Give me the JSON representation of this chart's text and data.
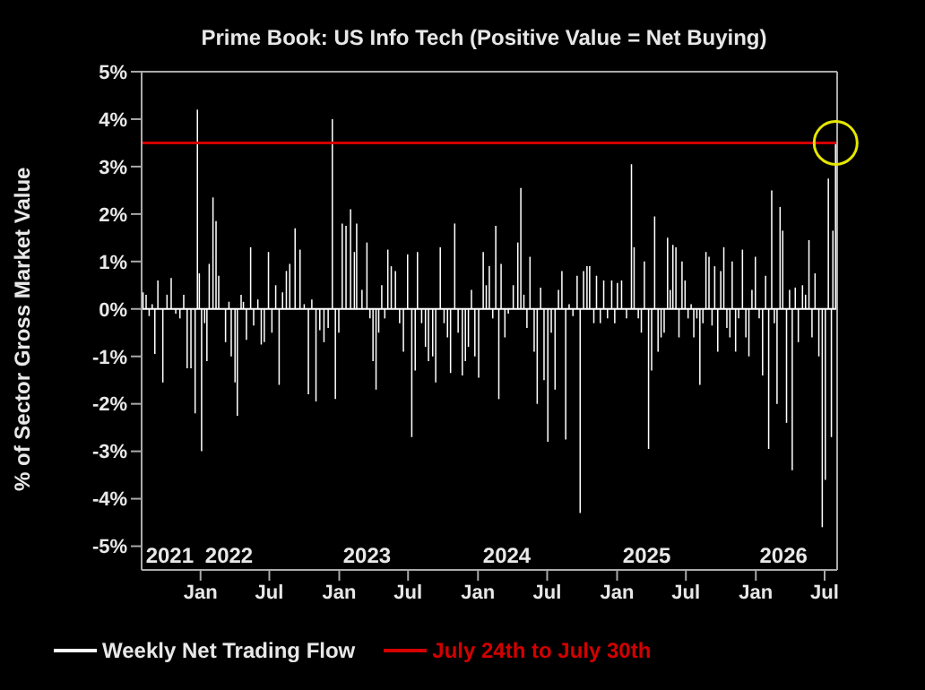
{
  "chart_data": {
    "type": "bar",
    "title": "Prime Book: US Info Tech (Positive Value = Net Buying)",
    "ylabel": "% of Sector Gross Market Value",
    "xlim": [
      "2021-07-30",
      "2026-08-03"
    ],
    "xticks": [
      {
        "value": "2022-01-01",
        "label": "Jan"
      },
      {
        "value": "2022-07-01",
        "label": "Jul"
      },
      {
        "value": "2023-01-01",
        "label": "Jan"
      },
      {
        "value": "2023-07-01",
        "label": "Jul"
      },
      {
        "value": "2024-01-01",
        "label": "Jan"
      },
      {
        "value": "2024-07-01",
        "label": "Jul"
      },
      {
        "value": "2025-01-01",
        "label": "Jan"
      },
      {
        "value": "2025-07-01",
        "label": "Jul"
      },
      {
        "value": "2026-01-01",
        "label": "Jan"
      },
      {
        "value": "2026-07-01",
        "label": "Jul"
      }
    ],
    "x2lim": [
      "2021-07-30",
      "2026-08-03"
    ],
    "x2ticks": [
      {
        "value": "2021-10-12",
        "label": "2021"
      },
      {
        "value": "2022-03-17",
        "label": "2022"
      },
      {
        "value": "2023-03-15",
        "label": "2023"
      },
      {
        "value": "2024-03-17",
        "label": "2024"
      },
      {
        "value": "2025-03-20",
        "label": "2025"
      },
      {
        "value": "2026-03-15",
        "label": "2026"
      }
    ],
    "ylim": [
      -5.5,
      5
    ],
    "yticks": [
      {
        "value": -5,
        "label": "-5%"
      },
      {
        "value": -4,
        "label": "-4%"
      },
      {
        "value": -3,
        "label": "-3%"
      },
      {
        "value": -2,
        "label": "-2%"
      },
      {
        "value": -1,
        "label": "-1%"
      },
      {
        "value": 0,
        "label": "0%"
      },
      {
        "value": 1,
        "label": "1%"
      },
      {
        "value": 2,
        "label": "2%"
      },
      {
        "value": 3,
        "label": "3%"
      },
      {
        "value": 4,
        "label": "4%"
      },
      {
        "value": 5,
        "label": "5%"
      }
    ],
    "legend": "bottom",
    "ref_lines": [
      {
        "axis": "y",
        "value": 3.5,
        "label": "July 24th to July 30th",
        "color": "#d40000"
      }
    ],
    "series": [
      {
        "name": "Weekly Net Trading Flow",
        "color": "#ffffff",
        "x": [
          "2021-08-03",
          "2021-08-11",
          "2021-08-19",
          "2021-08-27",
          "2021-09-03",
          "2021-09-11",
          "2021-09-24",
          "2021-10-05",
          "2021-10-16",
          "2021-10-28",
          "2021-11-08",
          "2021-11-18",
          "2021-11-27",
          "2021-12-07",
          "2021-12-18",
          "2021-12-24",
          "2021-12-29",
          "2022-01-04",
          "2022-01-12",
          "2022-01-18",
          "2022-01-24",
          "2022-02-03",
          "2022-02-11",
          "2022-02-18",
          "2022-03-08",
          "2022-03-17",
          "2022-03-23",
          "2022-04-02",
          "2022-04-08",
          "2022-04-18",
          "2022-04-24",
          "2022-05-02",
          "2022-05-13",
          "2022-05-21",
          "2022-06-01",
          "2022-06-10",
          "2022-06-18",
          "2022-06-29",
          "2022-07-08",
          "2022-07-18",
          "2022-07-27",
          "2022-08-05",
          "2022-08-15",
          "2022-08-24",
          "2022-09-07",
          "2022-09-20",
          "2022-10-01",
          "2022-10-12",
          "2022-10-21",
          "2022-11-01",
          "2022-11-11",
          "2022-11-22",
          "2022-12-03",
          "2022-12-14",
          "2022-12-22",
          "2022-12-31",
          "2023-01-09",
          "2023-01-19",
          "2023-01-31",
          "2023-02-10",
          "2023-02-16",
          "2023-03-02",
          "2023-03-15",
          "2023-03-23",
          "2023-03-31",
          "2023-04-08",
          "2023-04-15",
          "2023-04-23",
          "2023-05-01",
          "2023-05-09",
          "2023-05-18",
          "2023-05-29",
          "2023-06-09",
          "2023-06-19",
          "2023-06-30",
          "2023-07-11",
          "2023-07-20",
          "2023-07-26",
          "2023-08-06",
          "2023-08-16",
          "2023-08-24",
          "2023-09-04",
          "2023-09-12",
          "2023-09-24",
          "2023-10-04",
          "2023-10-13",
          "2023-10-21",
          "2023-11-01",
          "2023-11-10",
          "2023-11-21",
          "2023-11-29",
          "2023-12-07",
          "2023-12-15",
          "2023-12-24",
          "2024-01-03",
          "2024-01-15",
          "2024-01-23",
          "2024-01-31",
          "2024-02-09",
          "2024-02-17",
          "2024-02-25",
          "2024-03-02",
          "2024-03-12",
          "2024-03-21",
          "2024-04-03",
          "2024-04-15",
          "2024-04-23",
          "2024-05-01",
          "2024-05-09",
          "2024-05-17",
          "2024-05-28",
          "2024-06-05",
          "2024-06-14",
          "2024-06-23",
          "2024-07-03",
          "2024-07-12",
          "2024-07-22",
          "2024-07-31",
          "2024-08-09",
          "2024-08-19",
          "2024-08-28",
          "2024-09-07",
          "2024-09-18",
          "2024-09-26",
          "2024-10-05",
          "2024-10-14",
          "2024-10-21",
          "2024-11-01",
          "2024-11-08",
          "2024-11-18",
          "2024-11-27",
          "2024-12-07",
          "2024-12-18",
          "2024-12-26",
          "2025-01-02",
          "2025-01-13",
          "2025-01-26",
          "2025-02-08",
          "2025-02-15",
          "2025-02-26",
          "2025-03-06",
          "2025-03-14",
          "2025-03-25",
          "2025-04-02",
          "2025-04-10",
          "2025-04-19",
          "2025-04-27",
          "2025-05-05",
          "2025-05-14",
          "2025-05-21",
          "2025-05-28",
          "2025-06-05",
          "2025-06-13",
          "2025-06-21",
          "2025-06-29",
          "2025-07-07",
          "2025-07-15",
          "2025-07-22",
          "2025-07-30",
          "2025-08-07",
          "2025-08-15",
          "2025-08-23",
          "2025-08-31",
          "2025-09-08",
          "2025-09-15",
          "2025-09-23",
          "2025-10-01",
          "2025-10-09",
          "2025-10-17",
          "2025-10-25",
          "2025-10-31",
          "2025-11-09",
          "2025-11-17",
          "2025-11-27",
          "2025-12-06",
          "2025-12-14",
          "2025-12-22",
          "2025-12-31",
          "2026-01-10",
          "2026-01-19",
          "2026-01-27",
          "2026-02-04",
          "2026-02-12",
          "2026-02-19",
          "2026-02-26",
          "2026-03-06",
          "2026-03-13",
          "2026-03-23",
          "2026-03-31",
          "2026-04-07",
          "2026-04-15",
          "2026-04-23",
          "2026-05-04",
          "2026-05-12",
          "2026-05-21",
          "2026-05-29",
          "2026-06-06",
          "2026-06-16",
          "2026-06-25",
          "2026-07-03",
          "2026-07-11",
          "2026-07-19",
          "2026-07-23",
          "2026-07-30"
        ],
        "values": [
          0.35,
          0.3,
          -0.15,
          0.1,
          -0.95,
          0.6,
          -1.55,
          0.3,
          0.65,
          -0.1,
          -0.2,
          0.3,
          -1.25,
          -1.25,
          -2.2,
          4.2,
          0.75,
          -3.0,
          -0.3,
          -1.1,
          0.95,
          2.35,
          1.85,
          0.7,
          -0.7,
          0.15,
          -1.0,
          -1.55,
          -2.25,
          0.3,
          0.15,
          -0.65,
          1.3,
          -0.35,
          0.2,
          -0.75,
          -0.7,
          1.2,
          -0.5,
          0.5,
          -1.6,
          0.35,
          0.8,
          0.95,
          1.7,
          1.25,
          0.1,
          -1.8,
          0.2,
          -1.95,
          -0.45,
          -0.7,
          -0.4,
          4.0,
          -1.9,
          -0.5,
          1.8,
          1.75,
          2.1,
          1.2,
          1.8,
          0.4,
          1.4,
          -0.2,
          -1.1,
          -1.7,
          -0.5,
          0.5,
          -0.2,
          1.25,
          0.9,
          0.8,
          -0.3,
          -0.9,
          1.15,
          -2.7,
          -1.3,
          1.2,
          -0.3,
          -0.8,
          -1.1,
          -1.0,
          -1.55,
          1.3,
          -0.3,
          -0.6,
          -1.35,
          1.8,
          -0.5,
          -1.4,
          -1.1,
          -0.8,
          0.4,
          -1.0,
          -1.45,
          1.2,
          0.5,
          0.9,
          -0.2,
          1.75,
          -1.9,
          0.95,
          -0.6,
          -0.1,
          0.5,
          1.4,
          2.55,
          0.3,
          -0.4,
          1.1,
          -0.9,
          -2.0,
          0.45,
          -1.5,
          -2.8,
          -0.5,
          -1.7,
          0.4,
          0.8,
          -2.75,
          0.1,
          -0.15,
          0.7,
          -4.3,
          0.8,
          0.9,
          0.9,
          -0.3,
          0.7,
          -0.3,
          0.6,
          -0.2,
          0.6,
          -0.3,
          0.55,
          0.6,
          -0.2,
          3.05,
          1.3,
          -0.2,
          -0.5,
          1.0,
          -2.95,
          -1.3,
          1.95,
          -0.9,
          -0.6,
          -0.5,
          1.5,
          0.4,
          1.35,
          1.3,
          -0.6,
          1.0,
          0.6,
          -0.2,
          0.1,
          -0.6,
          -0.2,
          -1.6,
          -0.3,
          1.2,
          1.1,
          -0.35,
          0.9,
          -0.9,
          0.8,
          1.3,
          -0.4,
          -0.6,
          1.0,
          -0.9,
          -0.2,
          1.25,
          -0.6,
          -1.0,
          0.4,
          1.1,
          -0.2,
          -1.4,
          0.7,
          -2.95,
          2.5,
          -0.3,
          -2.0,
          2.15,
          1.65,
          -2.4,
          0.4,
          -3.4,
          0.45,
          -0.7,
          0.5,
          0.3,
          1.45,
          -0.6,
          0.75,
          -1.0,
          -4.6,
          -3.6,
          2.75,
          -2.7,
          1.65,
          3.5
        ]
      }
    ]
  }
}
